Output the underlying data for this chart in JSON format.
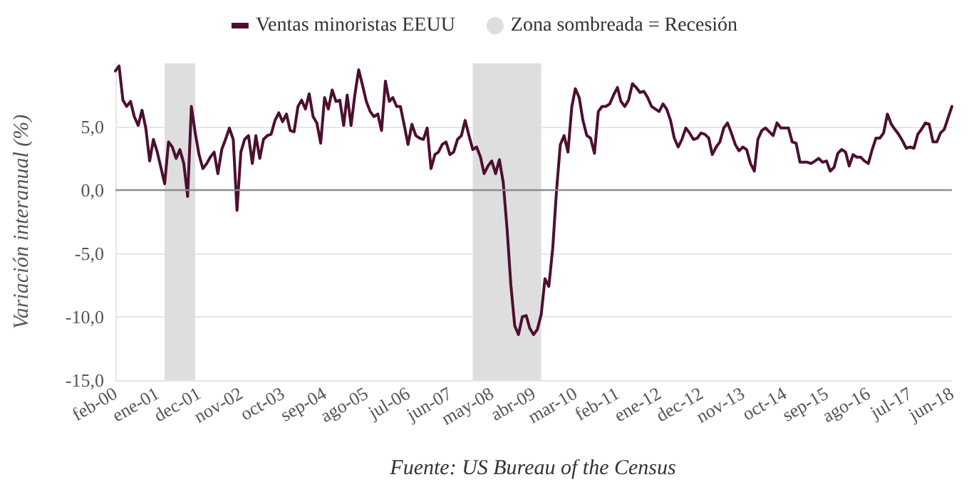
{
  "chart_data": {
    "type": "line",
    "ylabel": "Variación interanual (%)",
    "annotations": [
      "Fuente: US Bureau of the Census"
    ],
    "x": [
      "2000-02",
      "2000-03",
      "2000-04",
      "2000-05",
      "2000-06",
      "2000-07",
      "2000-08",
      "2000-09",
      "2000-10",
      "2000-11",
      "2000-12",
      "2001-01",
      "2001-02",
      "2001-03",
      "2001-04",
      "2001-05",
      "2001-06",
      "2001-07",
      "2001-08",
      "2001-09",
      "2001-10",
      "2001-11",
      "2001-12",
      "2002-01",
      "2002-02",
      "2002-03",
      "2002-04",
      "2002-05",
      "2002-06",
      "2002-07",
      "2002-08",
      "2002-09",
      "2002-10",
      "2002-11",
      "2002-12",
      "2003-01",
      "2003-02",
      "2003-03",
      "2003-04",
      "2003-05",
      "2003-06",
      "2003-07",
      "2003-08",
      "2003-09",
      "2003-10",
      "2003-11",
      "2003-12",
      "2004-01",
      "2004-02",
      "2004-03",
      "2004-04",
      "2004-05",
      "2004-06",
      "2004-07",
      "2004-08",
      "2004-09",
      "2004-10",
      "2004-11",
      "2004-12",
      "2005-01",
      "2005-02",
      "2005-03",
      "2005-04",
      "2005-05",
      "2005-06",
      "2005-07",
      "2005-08",
      "2005-09",
      "2005-10",
      "2005-11",
      "2005-12",
      "2006-01",
      "2006-02",
      "2006-03",
      "2006-04",
      "2006-05",
      "2006-06",
      "2006-07",
      "2006-08",
      "2006-09",
      "2006-10",
      "2006-11",
      "2006-12",
      "2007-01",
      "2007-02",
      "2007-03",
      "2007-04",
      "2007-05",
      "2007-06",
      "2007-07",
      "2007-08",
      "2007-09",
      "2007-10",
      "2007-11",
      "2007-12",
      "2008-01",
      "2008-02",
      "2008-03",
      "2008-04",
      "2008-05",
      "2008-06",
      "2008-07",
      "2008-08",
      "2008-09",
      "2008-10",
      "2008-11",
      "2008-12",
      "2009-01",
      "2009-02",
      "2009-03",
      "2009-04",
      "2009-05",
      "2009-06",
      "2009-07",
      "2009-08",
      "2009-09",
      "2009-10",
      "2009-11",
      "2009-12",
      "2010-01",
      "2010-02",
      "2010-03",
      "2010-04",
      "2010-05",
      "2010-06",
      "2010-07",
      "2010-08",
      "2010-09",
      "2010-10",
      "2010-11",
      "2010-12",
      "2011-01",
      "2011-02",
      "2011-03",
      "2011-04",
      "2011-05",
      "2011-06",
      "2011-07",
      "2011-08",
      "2011-09",
      "2011-10",
      "2011-11",
      "2011-12",
      "2012-01",
      "2012-02",
      "2012-03",
      "2012-04",
      "2012-05",
      "2012-06",
      "2012-07",
      "2012-08",
      "2012-09",
      "2012-10",
      "2012-11",
      "2012-12",
      "2013-01",
      "2013-02",
      "2013-03",
      "2013-04",
      "2013-05",
      "2013-06",
      "2013-07",
      "2013-08",
      "2013-09",
      "2013-10",
      "2013-11",
      "2013-12",
      "2014-01",
      "2014-02",
      "2014-03",
      "2014-04",
      "2014-05",
      "2014-06",
      "2014-07",
      "2014-08",
      "2014-09",
      "2014-10",
      "2014-11",
      "2014-12",
      "2015-01",
      "2015-02",
      "2015-03",
      "2015-04",
      "2015-05",
      "2015-06",
      "2015-07",
      "2015-08",
      "2015-09",
      "2015-10",
      "2015-11",
      "2015-12",
      "2016-01",
      "2016-02",
      "2016-03",
      "2016-04",
      "2016-05",
      "2016-06",
      "2016-07",
      "2016-08",
      "2016-09",
      "2016-10",
      "2016-11",
      "2016-12",
      "2017-01",
      "2017-02",
      "2017-03",
      "2017-04",
      "2017-05",
      "2017-06",
      "2017-07",
      "2017-08",
      "2017-09",
      "2017-10",
      "2017-11",
      "2017-12",
      "2018-01",
      "2018-02",
      "2018-03",
      "2018-04",
      "2018-05",
      "2018-06"
    ],
    "series": [
      {
        "name": "Ventas minoristas EEUU",
        "color": "#4d0f31",
        "values": [
          9.4,
          9.8,
          7.1,
          6.6,
          7.0,
          5.8,
          5.1,
          6.3,
          4.9,
          2.3,
          4.0,
          3.0,
          1.7,
          0.5,
          3.8,
          3.4,
          2.5,
          3.2,
          2.1,
          -0.5,
          6.6,
          4.5,
          2.8,
          1.7,
          2.1,
          2.6,
          3.0,
          1.3,
          3.2,
          4.0,
          4.9,
          4.0,
          -1.6,
          3.0,
          4.0,
          4.3,
          2.1,
          4.3,
          2.5,
          4.0,
          4.3,
          4.4,
          5.5,
          6.1,
          5.4,
          6.0,
          4.7,
          4.6,
          6.6,
          7.1,
          6.4,
          7.6,
          5.8,
          5.3,
          3.7,
          7.3,
          6.4,
          7.9,
          7.0,
          7.1,
          5.1,
          7.5,
          5.1,
          7.5,
          9.5,
          8.3,
          7.0,
          6.2,
          5.8,
          6.0,
          4.7,
          8.6,
          7.0,
          7.3,
          6.6,
          6.6,
          5.1,
          3.6,
          5.2,
          4.3,
          4.1,
          4.0,
          4.9,
          1.7,
          2.8,
          3.0,
          3.6,
          3.8,
          2.8,
          3.0,
          4.0,
          4.3,
          5.5,
          4.3,
          3.2,
          3.4,
          2.6,
          1.3,
          1.9,
          2.3,
          1.3,
          2.4,
          0.6,
          -3.1,
          -7.5,
          -10.7,
          -11.4,
          -10.0,
          -9.9,
          -10.9,
          -11.4,
          -11.0,
          -9.8,
          -7.0,
          -7.6,
          -4.6,
          -0.1,
          3.6,
          4.3,
          3.0,
          6.6,
          8.0,
          7.3,
          5.5,
          4.3,
          4.1,
          2.9,
          6.2,
          6.6,
          6.6,
          6.8,
          7.5,
          8.1,
          7.0,
          6.6,
          7.1,
          8.4,
          8.1,
          7.7,
          7.8,
          7.3,
          6.6,
          6.4,
          6.2,
          6.8,
          6.4,
          5.5,
          4.1,
          3.4,
          4.0,
          4.9,
          4.5,
          4.0,
          4.1,
          4.5,
          4.4,
          4.1,
          2.8,
          3.4,
          3.8,
          4.9,
          5.3,
          4.5,
          3.6,
          3.1,
          3.4,
          3.2,
          2.1,
          1.5,
          4.0,
          4.7,
          4.9,
          4.6,
          4.3,
          5.3,
          4.9,
          4.9,
          4.9,
          3.8,
          3.7,
          2.2,
          2.2,
          2.2,
          2.1,
          2.3,
          2.5,
          2.2,
          2.3,
          1.5,
          1.8,
          2.9,
          3.2,
          3.0,
          1.9,
          2.8,
          2.6,
          2.6,
          2.3,
          2.1,
          3.2,
          4.1,
          4.1,
          4.5,
          6.0,
          5.2,
          4.8,
          4.4,
          3.9,
          3.3,
          3.4,
          3.3,
          4.4,
          4.8,
          5.3,
          5.2,
          3.8,
          3.8,
          4.5,
          4.8,
          5.7,
          6.6
        ]
      }
    ],
    "xlim": [
      "2000-02",
      "2018-06"
    ],
    "xticks": [
      {
        "value": "2000-02",
        "label": "feb-00"
      },
      {
        "value": "2001-01",
        "label": "ene-01"
      },
      {
        "value": "2001-12",
        "label": "dec-01"
      },
      {
        "value": "2002-11",
        "label": "nov-02"
      },
      {
        "value": "2003-10",
        "label": "oct-03"
      },
      {
        "value": "2004-09",
        "label": "sep-04"
      },
      {
        "value": "2005-08",
        "label": "ago-05"
      },
      {
        "value": "2006-07",
        "label": "jul-06"
      },
      {
        "value": "2007-06",
        "label": "jun-07"
      },
      {
        "value": "2008-05",
        "label": "may-08"
      },
      {
        "value": "2009-04",
        "label": "abr-09"
      },
      {
        "value": "2010-03",
        "label": "mar-10"
      },
      {
        "value": "2011-02",
        "label": "feb-11"
      },
      {
        "value": "2012-01",
        "label": "ene-12"
      },
      {
        "value": "2012-12",
        "label": "dec-12"
      },
      {
        "value": "2013-11",
        "label": "nov-13"
      },
      {
        "value": "2014-10",
        "label": "oct-14"
      },
      {
        "value": "2015-09",
        "label": "sep-15"
      },
      {
        "value": "2016-08",
        "label": "ago-16"
      },
      {
        "value": "2017-07",
        "label": "jul-17"
      },
      {
        "value": "2018-06",
        "label": "jun-18"
      }
    ],
    "ylim": [
      -15,
      10
    ],
    "yticks": [
      {
        "value": -15,
        "label": "-15,0"
      },
      {
        "value": -10,
        "label": "-10,0"
      },
      {
        "value": -5,
        "label": "-5,0"
      },
      {
        "value": 0,
        "label": "0,0"
      },
      {
        "value": 5,
        "label": "5,0"
      }
    ],
    "grid": "y",
    "legend": "top",
    "ref_lines": [
      {
        "axis": "y",
        "value": 0,
        "color": "#8c8c8c"
      }
    ],
    "bands": [
      {
        "axis": "x",
        "from": "2001-03",
        "to": "2001-11",
        "label": "Zona sombreada = Recesión",
        "color": "#dedede"
      },
      {
        "axis": "x",
        "from": "2007-12",
        "to": "2009-06",
        "color": "#dedede"
      }
    ]
  }
}
